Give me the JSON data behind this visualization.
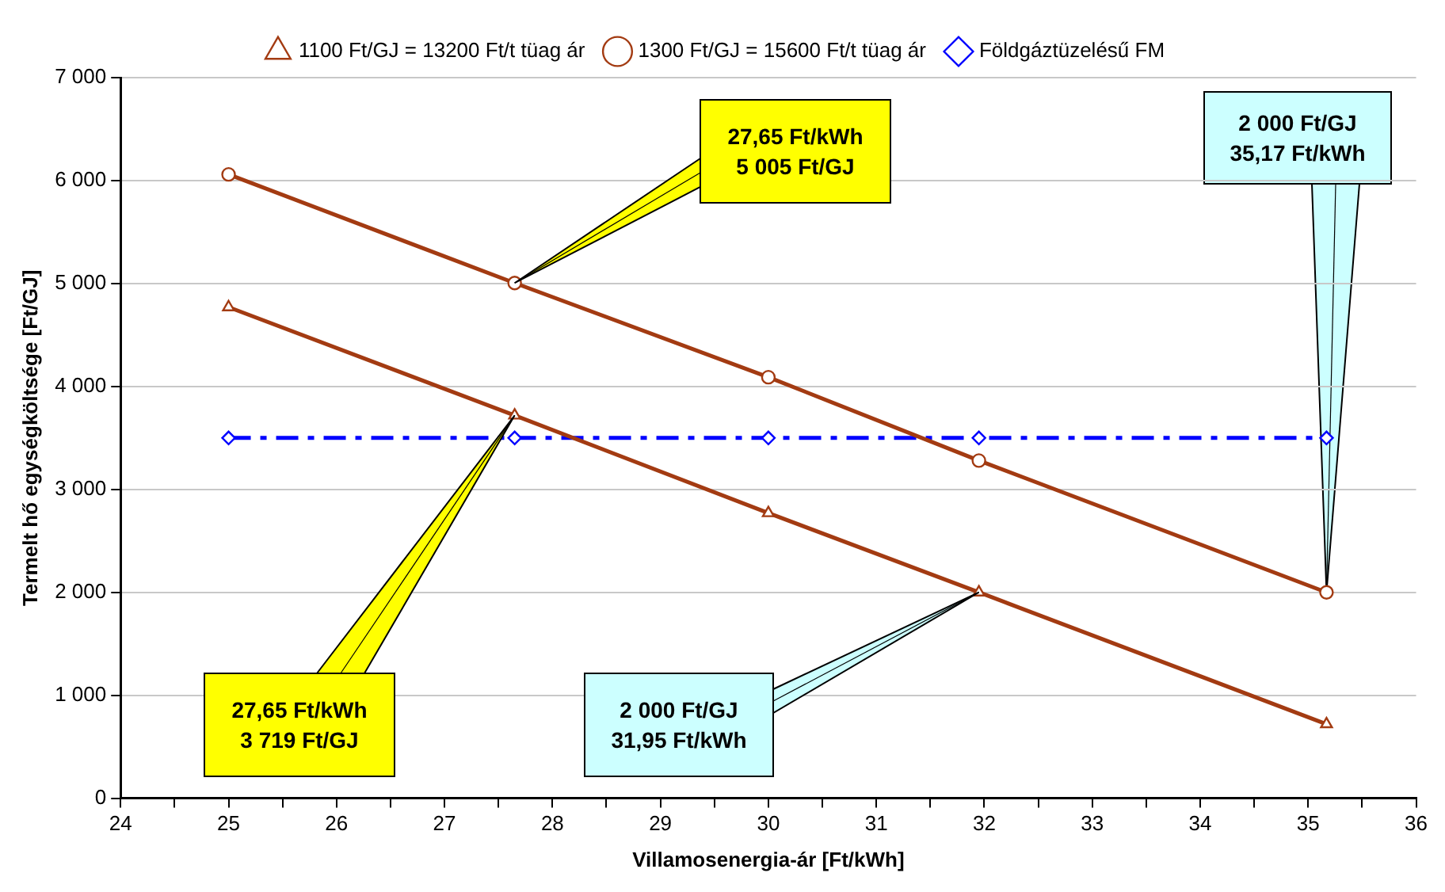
{
  "chart_data": {
    "type": "line",
    "xlabel": "Villamosenergia-ár [Ft/kWh]",
    "ylabel": "Termelt hő egységköltsége [Ft/GJ]",
    "x": [
      25,
      27.65,
      30,
      31.95,
      35.17
    ],
    "series": [
      {
        "name": "1100 Ft/GJ = 13200 Ft/t tüag ár",
        "color": "#a33b12",
        "marker": "triangle",
        "line_style": "solid",
        "values": [
          4770,
          3719,
          2770,
          2000,
          720
        ]
      },
      {
        "name": "1300 Ft/GJ = 15600 Ft/t tüag ár",
        "color": "#a33b12",
        "marker": "circle",
        "line_style": "solid",
        "values": [
          6060,
          5005,
          4090,
          3280,
          2000
        ]
      },
      {
        "name": "Földgáztüzelésű FM",
        "color": "#0000ff",
        "marker": "diamond",
        "line_style": "dashed",
        "values": [
          3500,
          3500,
          3500,
          3500,
          3500
        ]
      }
    ],
    "xlim": [
      24,
      36
    ],
    "xticks": [
      24,
      {
        "value": 24.5,
        "label": null
      },
      25,
      {
        "value": 25.5,
        "label": null
      },
      26,
      {
        "value": 26.5,
        "label": null
      },
      27,
      {
        "value": 27.5,
        "label": null
      },
      28,
      {
        "value": 28.5,
        "label": null
      },
      29,
      {
        "value": 29.5,
        "label": null
      },
      30,
      {
        "value": 30.5,
        "label": null
      },
      31,
      {
        "value": 31.5,
        "label": null
      },
      32,
      {
        "value": 32.5,
        "label": null
      },
      33,
      {
        "value": 33.5,
        "label": null
      },
      34,
      {
        "value": 34.5,
        "label": null
      },
      35,
      {
        "value": 35.5,
        "label": null
      },
      36
    ],
    "ylim": [
      0,
      7000
    ],
    "yticks": [
      0,
      {
        "value": 1000,
        "label": "1 000"
      },
      {
        "value": 2000,
        "label": "2 000"
      },
      {
        "value": 3000,
        "label": "3 000"
      },
      {
        "value": 4000,
        "label": "4 000"
      },
      {
        "value": 5000,
        "label": "5 000"
      },
      {
        "value": 6000,
        "label": "6 000"
      },
      {
        "value": 7000,
        "label": "7 000"
      }
    ],
    "grid": "y",
    "legend": "top",
    "annotations": [
      {
        "text": "27,65 Ft/kWh\n5 005 Ft/GJ",
        "x": 27.65,
        "y": 5005
      },
      {
        "text": "2 000 Ft/GJ\n35,17 Ft/kWh",
        "x": 35.17,
        "y": 2000
      },
      {
        "text": "27,65 Ft/kWh\n3 719 Ft/GJ",
        "x": 27.65,
        "y": 3719
      },
      {
        "text": "2 000 Ft/GJ\n31,95 Ft/kWh",
        "x": 31.95,
        "y": 2000
      }
    ]
  }
}
